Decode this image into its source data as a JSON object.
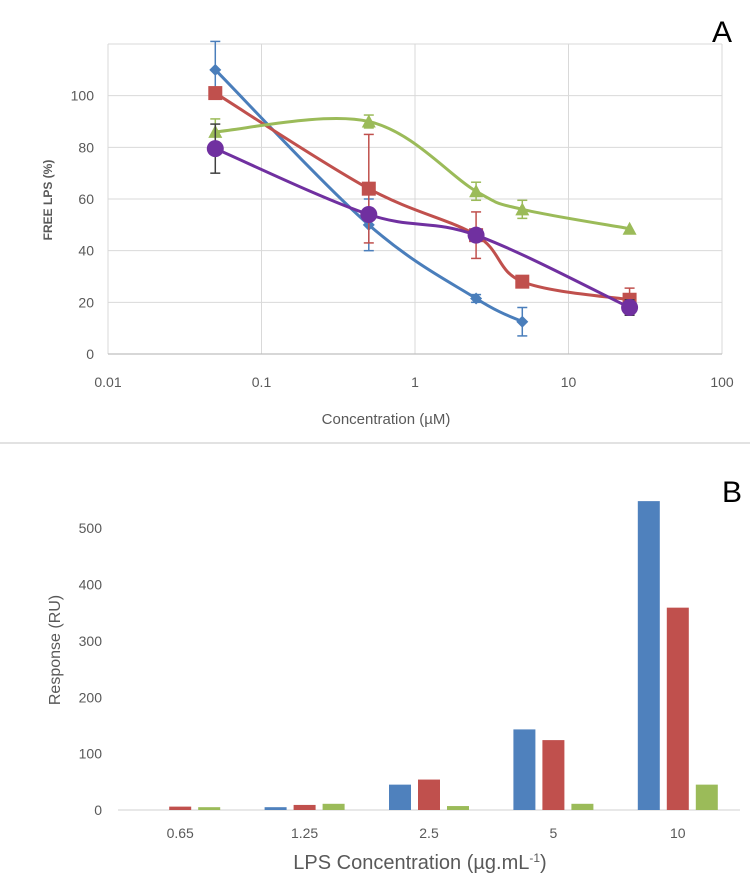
{
  "chart_data": [
    {
      "type": "line",
      "panel_label": "A",
      "title": "",
      "xlabel": "Concentration (µM)",
      "ylabel": "FREE LPS (%)",
      "x_scale": "log",
      "xlim": [
        0.01,
        100
      ],
      "ylim": [
        0,
        120
      ],
      "x_ticks": [
        0.01,
        0.1,
        1,
        10,
        100
      ],
      "x_tick_labels": [
        "0.01",
        "0.1",
        "1",
        "10",
        "100"
      ],
      "y_ticks": [
        0,
        20,
        40,
        60,
        80,
        100
      ],
      "y_tick_labels": [
        "0",
        "20",
        "40",
        "60",
        "80",
        "100"
      ],
      "grid": true,
      "legend": "none",
      "series": [
        {
          "color": "#4a7ebb",
          "marker": "diamond",
          "x": [
            0.05,
            0.5,
            2.5,
            5
          ],
          "y": [
            110,
            50,
            21.5,
            12.5
          ],
          "error": [
            11,
            10,
            1.5,
            5.5
          ]
        },
        {
          "color": "#c0504d",
          "marker": "square",
          "x": [
            0.05,
            0.5,
            2.5,
            5,
            25
          ],
          "y": [
            101,
            64,
            46,
            28,
            21
          ],
          "error": [
            0,
            21,
            9,
            0,
            4.5
          ]
        },
        {
          "color": "#9bbb59",
          "marker": "triangle",
          "x": [
            0.05,
            0.5,
            2.5,
            5,
            25
          ],
          "y": [
            86,
            90,
            63,
            56,
            48.5
          ],
          "error": [
            5,
            2.5,
            3.5,
            3.5,
            0
          ]
        },
        {
          "color": "#7030a0",
          "marker": "circle",
          "x": [
            0.05,
            0.5,
            2.5,
            25
          ],
          "y": [
            79.5,
            54,
            46,
            18
          ],
          "error": [
            9.5,
            0,
            0,
            3
          ]
        }
      ]
    },
    {
      "type": "bar",
      "panel_label": "B",
      "title": "",
      "xlabel": "LPS Concentration (µg.mL",
      "xlabel_superscript": "-1",
      "xlabel_suffix": ")",
      "ylabel": "Response (RU)",
      "ylim": [
        0,
        550
      ],
      "y_ticks": [
        0,
        100,
        200,
        300,
        400,
        500
      ],
      "y_tick_labels": [
        "0",
        "100",
        "200",
        "300",
        "400",
        "500"
      ],
      "grid": false,
      "legend": "none",
      "categories": [
        "0.65",
        "1.25",
        "2.5",
        "5",
        "10"
      ],
      "series": [
        {
          "color": "#4f81bd",
          "values": [
            0,
            5,
            45,
            143,
            548
          ]
        },
        {
          "color": "#c0504d",
          "values": [
            6,
            9,
            54,
            124,
            359
          ]
        },
        {
          "color": "#9bbb59",
          "values": [
            5,
            11,
            7,
            11,
            45
          ]
        }
      ]
    }
  ]
}
